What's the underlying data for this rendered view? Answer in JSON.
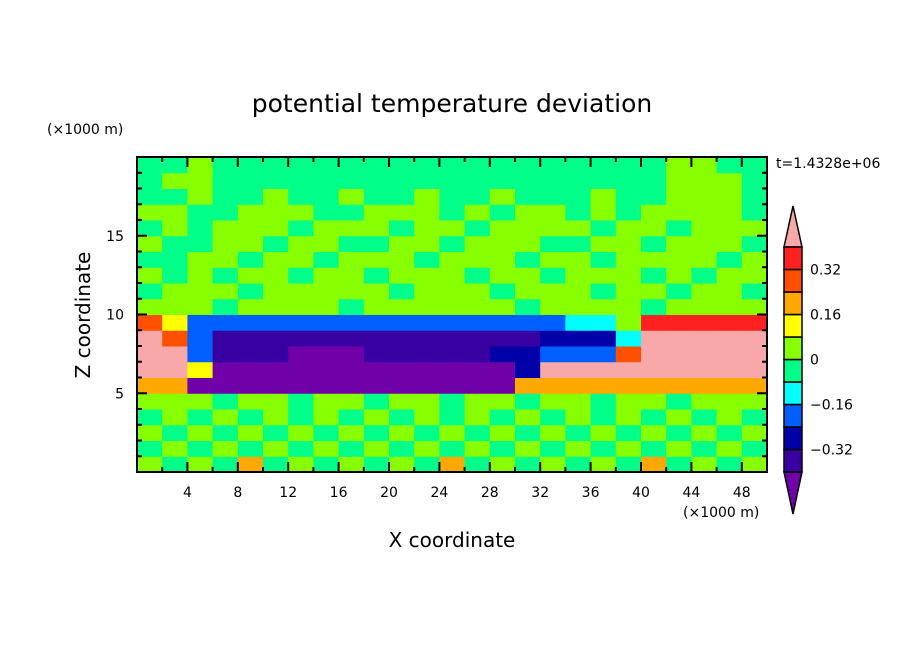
{
  "chart_data": {
    "type": "heatmap",
    "title": "potential temperature deviation",
    "xlabel": "X coordinate",
    "ylabel": "Z coordinate",
    "x_unit": "(×1000 m)",
    "y_unit": "(×1000 m)",
    "time_label": "t=1.4328e+06",
    "xlim": [
      0,
      50
    ],
    "ylim": [
      0,
      20
    ],
    "x_ticks": [
      4,
      8,
      12,
      16,
      20,
      24,
      28,
      32,
      36,
      40,
      44,
      48
    ],
    "y_ticks": [
      5,
      10,
      15
    ],
    "x_centers": [
      1,
      3,
      5,
      7,
      9,
      11,
      13,
      15,
      17,
      19,
      21,
      23,
      25,
      27,
      29,
      31,
      33,
      35,
      37,
      39,
      41,
      43,
      45,
      47,
      49
    ],
    "z_centers": [
      0.5,
      1.5,
      2.5,
      3.5,
      4.5,
      5.5,
      6.5,
      7.5,
      8.5,
      9.5,
      10.5,
      11.5,
      12.5,
      13.5,
      14.5,
      15.5,
      16.5,
      17.5,
      18.5,
      19.5
    ],
    "values": [
      [
        0.04,
        -0.04,
        0.04,
        -0.04,
        0.2,
        -0.04,
        0.04,
        -0.04,
        0.04,
        -0.04,
        0.04,
        -0.04,
        0.2,
        -0.04,
        0.04,
        -0.04,
        0.04,
        -0.04,
        0.04,
        -0.04,
        0.2,
        -0.04,
        0.04,
        -0.04,
        0.04
      ],
      [
        -0.04,
        0.04,
        -0.04,
        0.04,
        -0.04,
        0.04,
        -0.04,
        0.04,
        -0.04,
        0.04,
        -0.04,
        0.04,
        -0.04,
        0.04,
        -0.04,
        0.04,
        -0.04,
        0.04,
        -0.04,
        0.04,
        -0.04,
        0.04,
        -0.04,
        0.04,
        -0.04
      ],
      [
        0.04,
        -0.04,
        0.04,
        -0.04,
        0.04,
        -0.04,
        0.04,
        -0.04,
        0.04,
        -0.04,
        0.04,
        -0.04,
        0.04,
        -0.04,
        0.04,
        -0.04,
        0.04,
        -0.04,
        0.04,
        -0.04,
        0.04,
        -0.04,
        0.04,
        -0.04,
        0.04
      ],
      [
        -0.04,
        0.04,
        -0.04,
        0.04,
        -0.04,
        0.04,
        -0.04,
        0.04,
        -0.04,
        0.04,
        -0.04,
        0.04,
        -0.04,
        0.04,
        -0.04,
        0.04,
        -0.04,
        0.04,
        -0.04,
        0.04,
        -0.04,
        0.04,
        -0.04,
        0.04,
        -0.04
      ],
      [
        0.04,
        0.04,
        0.04,
        -0.04,
        0.04,
        0.04,
        -0.04,
        0.04,
        0.04,
        -0.04,
        0.04,
        0.04,
        -0.04,
        0.04,
        0.04,
        -0.04,
        0.04,
        0.04,
        -0.04,
        0.04,
        0.04,
        -0.04,
        0.04,
        0.04,
        0.04
      ],
      [
        0.2,
        0.2,
        -0.45,
        -0.45,
        -0.45,
        -0.45,
        -0.45,
        -0.45,
        -0.45,
        -0.45,
        -0.45,
        -0.45,
        -0.45,
        -0.45,
        -0.45,
        0.2,
        0.2,
        0.2,
        0.2,
        0.2,
        0.2,
        0.2,
        0.2,
        0.2,
        0.2
      ],
      [
        0.45,
        0.45,
        0.1,
        -0.45,
        -0.45,
        -0.45,
        -0.45,
        -0.45,
        -0.45,
        -0.45,
        -0.45,
        -0.45,
        -0.45,
        -0.45,
        -0.45,
        -0.3,
        0.45,
        0.45,
        0.45,
        0.45,
        0.45,
        0.45,
        0.45,
        0.45,
        0.45
      ],
      [
        0.45,
        0.45,
        -0.2,
        -0.38,
        -0.38,
        -0.38,
        -0.45,
        -0.45,
        -0.45,
        -0.38,
        -0.38,
        -0.38,
        -0.38,
        -0.38,
        -0.3,
        -0.3,
        -0.2,
        -0.2,
        -0.2,
        0.3,
        0.45,
        0.45,
        0.45,
        0.45,
        0.45
      ],
      [
        0.45,
        0.3,
        -0.2,
        -0.35,
        -0.35,
        -0.35,
        -0.35,
        -0.35,
        -0.35,
        -0.35,
        -0.35,
        -0.35,
        -0.35,
        -0.35,
        -0.35,
        -0.35,
        -0.3,
        -0.3,
        -0.3,
        -0.1,
        0.45,
        0.45,
        0.45,
        0.45,
        0.45
      ],
      [
        0.3,
        0.1,
        -0.2,
        -0.2,
        -0.2,
        -0.2,
        -0.2,
        -0.2,
        -0.2,
        -0.2,
        -0.2,
        -0.2,
        -0.2,
        -0.2,
        -0.2,
        -0.2,
        -0.2,
        -0.12,
        -0.12,
        0.04,
        0.36,
        0.36,
        0.36,
        0.36,
        0.36
      ],
      [
        0.04,
        0.04,
        0.04,
        -0.04,
        0.04,
        0.04,
        0.04,
        0.04,
        -0.04,
        0.04,
        0.04,
        0.04,
        0.04,
        0.04,
        0.04,
        -0.04,
        0.04,
        0.04,
        0.04,
        0.04,
        -0.04,
        0.04,
        0.04,
        0.04,
        0.04
      ],
      [
        -0.04,
        0.04,
        0.04,
        0.04,
        -0.04,
        0.04,
        0.04,
        0.04,
        0.04,
        0.04,
        -0.04,
        0.04,
        0.04,
        0.04,
        -0.04,
        0.04,
        0.04,
        0.04,
        -0.04,
        0.04,
        0.04,
        -0.04,
        0.04,
        0.04,
        -0.04
      ],
      [
        0.04,
        -0.04,
        0.04,
        -0.04,
        0.04,
        0.04,
        -0.04,
        0.04,
        0.04,
        -0.04,
        0.04,
        0.04,
        0.04,
        -0.04,
        0.04,
        0.04,
        -0.04,
        0.04,
        0.04,
        0.04,
        -0.04,
        0.04,
        -0.04,
        0.04,
        0.04
      ],
      [
        -0.04,
        -0.04,
        0.04,
        0.04,
        -0.04,
        0.04,
        0.04,
        -0.04,
        0.04,
        0.04,
        0.04,
        -0.04,
        0.04,
        0.04,
        0.04,
        -0.04,
        0.04,
        0.04,
        -0.04,
        0.04,
        0.04,
        0.04,
        0.04,
        -0.04,
        0.04
      ],
      [
        0.04,
        -0.04,
        -0.04,
        0.04,
        0.04,
        -0.04,
        0.04,
        0.04,
        -0.04,
        -0.04,
        0.04,
        0.04,
        -0.04,
        0.04,
        0.04,
        0.04,
        -0.04,
        -0.04,
        0.04,
        0.04,
        -0.04,
        0.04,
        0.04,
        0.04,
        -0.04
      ],
      [
        -0.04,
        0.04,
        -0.04,
        0.04,
        0.04,
        0.04,
        -0.04,
        0.04,
        0.04,
        0.04,
        -0.04,
        0.04,
        0.04,
        -0.04,
        0.04,
        0.04,
        0.04,
        0.04,
        -0.04,
        0.04,
        0.04,
        -0.04,
        0.04,
        0.04,
        0.04
      ],
      [
        0.04,
        0.04,
        -0.04,
        -0.04,
        0.04,
        0.04,
        0.04,
        -0.04,
        -0.04,
        0.04,
        0.04,
        0.04,
        -0.04,
        0.04,
        -0.04,
        0.04,
        0.04,
        -0.04,
        0.04,
        -0.04,
        0.04,
        0.04,
        0.04,
        0.04,
        -0.04
      ],
      [
        -0.04,
        -0.04,
        0.04,
        -0.04,
        -0.04,
        0.04,
        -0.04,
        -0.04,
        0.04,
        -0.04,
        -0.04,
        0.04,
        -0.04,
        -0.04,
        0.04,
        -0.04,
        -0.04,
        -0.04,
        0.04,
        -0.04,
        -0.04,
        0.04,
        0.04,
        0.04,
        -0.04
      ],
      [
        -0.04,
        0.04,
        0.04,
        -0.04,
        -0.04,
        -0.04,
        -0.04,
        -0.04,
        -0.04,
        -0.04,
        -0.04,
        -0.04,
        -0.04,
        -0.04,
        -0.04,
        -0.04,
        -0.04,
        -0.04,
        -0.04,
        -0.04,
        -0.04,
        0.04,
        0.04,
        0.04,
        -0.04
      ],
      [
        -0.04,
        -0.04,
        0.04,
        -0.04,
        -0.04,
        -0.04,
        -0.04,
        -0.04,
        -0.04,
        -0.04,
        -0.04,
        -0.04,
        -0.04,
        -0.04,
        -0.04,
        -0.04,
        -0.04,
        -0.04,
        -0.04,
        -0.04,
        -0.04,
        0.04,
        0.04,
        -0.04,
        -0.04
      ]
    ],
    "colorbar": {
      "levels": [
        -0.4,
        -0.32,
        -0.24,
        -0.16,
        -0.08,
        0,
        0.08,
        0.16,
        0.24,
        0.32,
        0.4
      ],
      "colors": [
        "#7000a8",
        "#3800a0",
        "#0000a8",
        "#0060ff",
        "#00ffff",
        "#00ff88",
        "#88ff00",
        "#ffff00",
        "#ffa800",
        "#ff5000",
        "#ff2020",
        "#f8a8a8"
      ],
      "tick_values": [
        0.32,
        0.16,
        0,
        -0.16,
        -0.32
      ],
      "tick_labels": [
        "0.32",
        "0.16",
        "0",
        "−0.16",
        "−0.32"
      ]
    }
  }
}
